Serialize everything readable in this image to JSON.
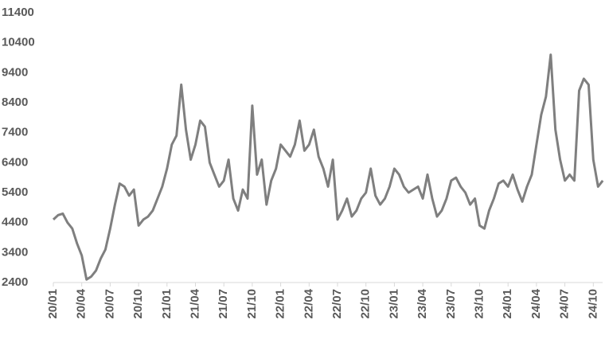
{
  "chart_data": {
    "type": "line",
    "categories": [
      "20/01",
      null,
      null,
      null,
      null,
      null,
      "20/04",
      null,
      null,
      null,
      null,
      null,
      "20/07",
      null,
      null,
      null,
      null,
      null,
      "20/10",
      null,
      null,
      null,
      null,
      null,
      "21/01",
      null,
      null,
      null,
      null,
      null,
      "21/04",
      null,
      null,
      null,
      null,
      null,
      "21/07",
      null,
      null,
      null,
      null,
      null,
      "21/10",
      null,
      null,
      null,
      null,
      null,
      "22/01",
      null,
      null,
      null,
      null,
      null,
      "22/04",
      null,
      null,
      null,
      null,
      null,
      "22/07",
      null,
      null,
      null,
      null,
      null,
      "22/10",
      null,
      null,
      null,
      null,
      null,
      "23/01",
      null,
      null,
      null,
      null,
      null,
      "23/04",
      null,
      null,
      null,
      null,
      null,
      "23/07",
      null,
      null,
      null,
      null,
      null,
      "23/10",
      null,
      null,
      null,
      null,
      null,
      "24/01",
      null,
      null,
      null,
      null,
      null,
      "24/04",
      null,
      null,
      null,
      null,
      null,
      "24/07",
      null,
      null,
      null,
      null,
      null,
      "24/10",
      null,
      null
    ],
    "values": [
      4500,
      4650,
      4700,
      4400,
      4200,
      3700,
      3300,
      2500,
      2600,
      2800,
      3200,
      3500,
      4200,
      5000,
      5700,
      5600,
      5300,
      5500,
      4300,
      4500,
      4600,
      4800,
      5200,
      5600,
      6200,
      7000,
      7300,
      9000,
      7500,
      6500,
      7000,
      7800,
      7600,
      6400,
      6000,
      5600,
      5800,
      6500,
      5200,
      4800,
      5500,
      5200,
      8300,
      6000,
      6500,
      5000,
      5800,
      6200,
      7000,
      6800,
      6600,
      7000,
      7800,
      6800,
      7000,
      7500,
      6600,
      6200,
      5600,
      6500,
      4500,
      4800,
      5200,
      4600,
      4800,
      5200,
      5400,
      6200,
      5300,
      5000,
      5200,
      5600,
      6200,
      6000,
      5600,
      5400,
      5500,
      5600,
      5200,
      6000,
      5200,
      4600,
      4800,
      5200,
      5800,
      5900,
      5600,
      5400,
      5000,
      5200,
      4300,
      4200,
      4800,
      5200,
      5700,
      5800,
      5600,
      6000,
      5500,
      5100,
      5600,
      6000,
      7000,
      8000,
      8600,
      10000,
      7500,
      6500,
      5800,
      6000,
      5800,
      8800,
      9200,
      9000,
      6500,
      5600,
      5800
    ],
    "color": "#7f7f7f",
    "ylim": [
      2400,
      11400
    ],
    "yticks": [
      2400,
      3400,
      4400,
      5400,
      6400,
      7400,
      8400,
      9400,
      {
        "value": 10400,
        "label": "10400"
      },
      {
        "value": 11400,
        "label": "11400"
      }
    ],
    "grid": false
  }
}
